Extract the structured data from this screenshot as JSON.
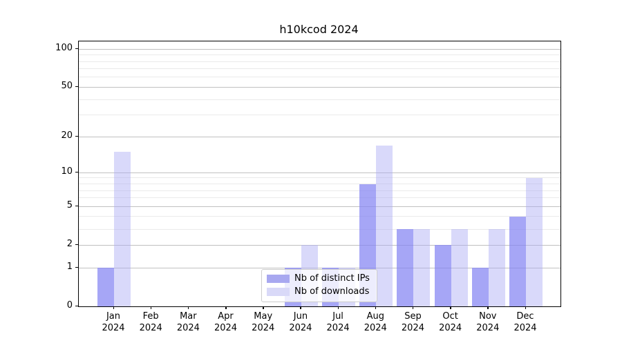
{
  "chart_data": {
    "type": "bar",
    "title": "h10kcod 2024",
    "categories": [
      "Jan",
      "Feb",
      "Mar",
      "Apr",
      "May",
      "Jun",
      "Jul",
      "Aug",
      "Sep",
      "Oct",
      "Nov",
      "Dec"
    ],
    "year": "2024",
    "series": [
      {
        "name": "Nb of distinct IPs",
        "color_rendered": "#a8a8f0",
        "color_rgba": "rgba(131,131,242,0.72)",
        "values": [
          1,
          0,
          0,
          0,
          0,
          1,
          1,
          8,
          3,
          2,
          1,
          4
        ]
      },
      {
        "name": "Nb of downloads",
        "color_rendered": "#d9d9f8",
        "color_rgba": "rgba(171,171,244,0.45)",
        "values": [
          15,
          0,
          0,
          0,
          0,
          2,
          1,
          17,
          3,
          3,
          3,
          9
        ]
      }
    ],
    "yscale": "log1p",
    "ylim": [
      0,
      115
    ],
    "y_major_ticks": [
      0,
      1,
      2,
      5,
      10,
      20,
      50,
      100
    ],
    "y_minor_gridlines": [
      3,
      4,
      6,
      7,
      8,
      9,
      30,
      40,
      60,
      70,
      80,
      90
    ],
    "xlabel": "",
    "ylabel": "",
    "grid": "horizontal major and minor gridlines",
    "legend_position": "lower center"
  },
  "colors": {
    "major_grid": "#c0c0c0",
    "minor_grid": "#eaeaea",
    "spine": "#000000",
    "text": "#000000",
    "legend_border": "#cccccc",
    "legend_background": "rgba(255,255,255,0.8)"
  }
}
